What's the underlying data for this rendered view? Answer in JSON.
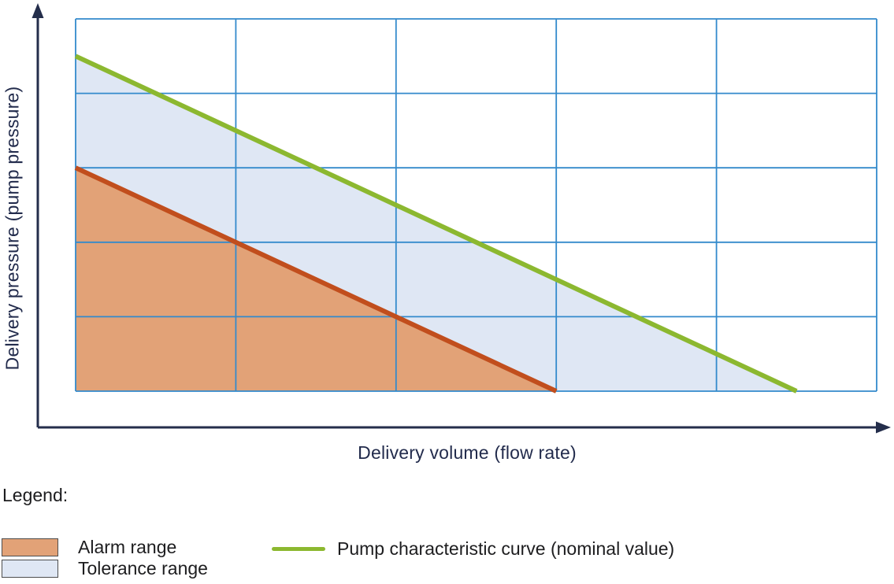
{
  "chart": {
    "xlabel": "Delivery volume (flow rate)",
    "ylabel": "Delivery pressure (pump pressure)"
  },
  "chart_data": {
    "type": "area",
    "title": "",
    "xlabel": "Delivery volume (flow rate)",
    "ylabel": "Delivery pressure (pump pressure)",
    "xlim": [
      0,
      5
    ],
    "ylim": [
      0,
      5
    ],
    "grid": true,
    "x_gridlines": [
      0,
      1,
      2,
      3,
      4,
      5
    ],
    "y_gridlines": [
      0,
      1,
      2,
      3,
      4,
      5
    ],
    "tick_labels_shown": false,
    "grid_color": "#338acc",
    "series": [
      {
        "name": "Tolerance range",
        "kind": "area",
        "fill_color": "#dfe7f4",
        "polygon": [
          [
            0,
            4.5
          ],
          [
            4.5,
            0
          ],
          [
            0,
            0
          ]
        ]
      },
      {
        "name": "Alarm range",
        "kind": "area",
        "fill_color": "#e2a277",
        "polygon": [
          [
            0,
            3
          ],
          [
            3,
            0
          ],
          [
            0,
            0
          ]
        ]
      },
      {
        "name": "Alarm range boundary",
        "kind": "line",
        "color": "#c14e1d",
        "stroke_width": 6,
        "points": [
          [
            0,
            3
          ],
          [
            3,
            0
          ]
        ]
      },
      {
        "name": "Pump characteristic curve (nominal value)",
        "kind": "line",
        "color": "#8cb830",
        "stroke_width": 6,
        "points": [
          [
            0,
            4.5
          ],
          [
            4.5,
            0
          ]
        ]
      }
    ]
  },
  "legend": {
    "title": "Legend:",
    "items": [
      {
        "label": "Alarm range",
        "swatch_type": "rect",
        "swatch_color": "#e2a277"
      },
      {
        "label": "Tolerance range",
        "swatch_type": "rect",
        "swatch_color": "#dfe7f4"
      },
      {
        "label": "Pump characteristic curve (nominal value)",
        "swatch_type": "line",
        "swatch_color": "#8cb830"
      }
    ]
  },
  "colors": {
    "axis": "#242e4b",
    "axis_label_text": "#222b4c",
    "grid": "#338acc",
    "legend_text": "#1d1d1f",
    "swatch_border": "#4d4d4d",
    "pump_curve_green": "#8cb830",
    "alarm_line_red": "#c14e1d",
    "alarm_fill": "#e2a277",
    "tolerance_fill": "#dfe7f4"
  }
}
